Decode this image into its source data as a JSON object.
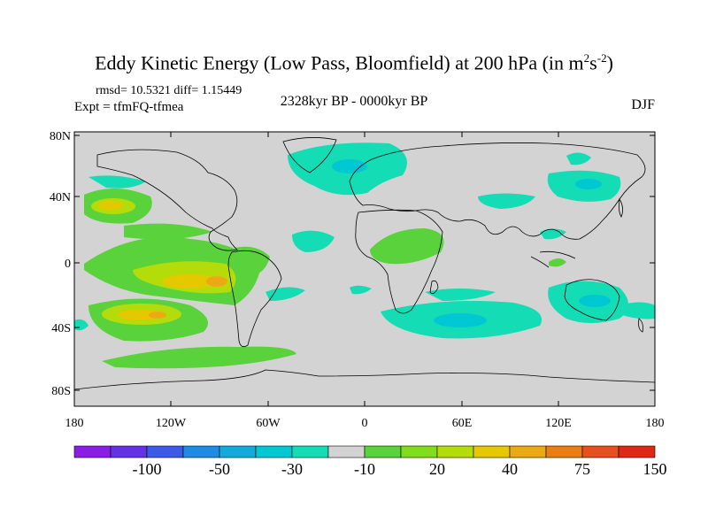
{
  "title": {
    "main": "Eddy Kinetic Energy (Low Pass, Bloomfield) at 200 hPa (in m",
    "sup1": "2",
    "mid": "s",
    "sup2": "-2",
    "close": ")"
  },
  "stats": "rmsd= 10.5321 diff= 1.15449",
  "experiment": "Expt = tfmFQ-tfmea",
  "period": "2328kyr BP - 0000kyr BP",
  "season": "DJF",
  "map": {
    "lat_ticks": [
      "80N",
      "40N",
      "0",
      "40S",
      "80S"
    ],
    "lon_ticks": [
      "180",
      "120W",
      "60W",
      "0",
      "60E",
      "120E",
      "180"
    ],
    "land_color": "#d3d3d3"
  },
  "colorbar": {
    "colors": [
      "#8a1ee6",
      "#6432e6",
      "#3c5ae6",
      "#1e8ce6",
      "#14aade",
      "#00c8d2",
      "#14dcb4",
      "#d3d3d3",
      "#5ad23c",
      "#82dc1e",
      "#b4dc0a",
      "#e6c800",
      "#ebaa14",
      "#eb7d14",
      "#e6501e",
      "#dc2814"
    ],
    "labels": [
      "-100",
      "-50",
      "-30",
      "-10",
      "20",
      "40",
      "75",
      "150"
    ]
  }
}
